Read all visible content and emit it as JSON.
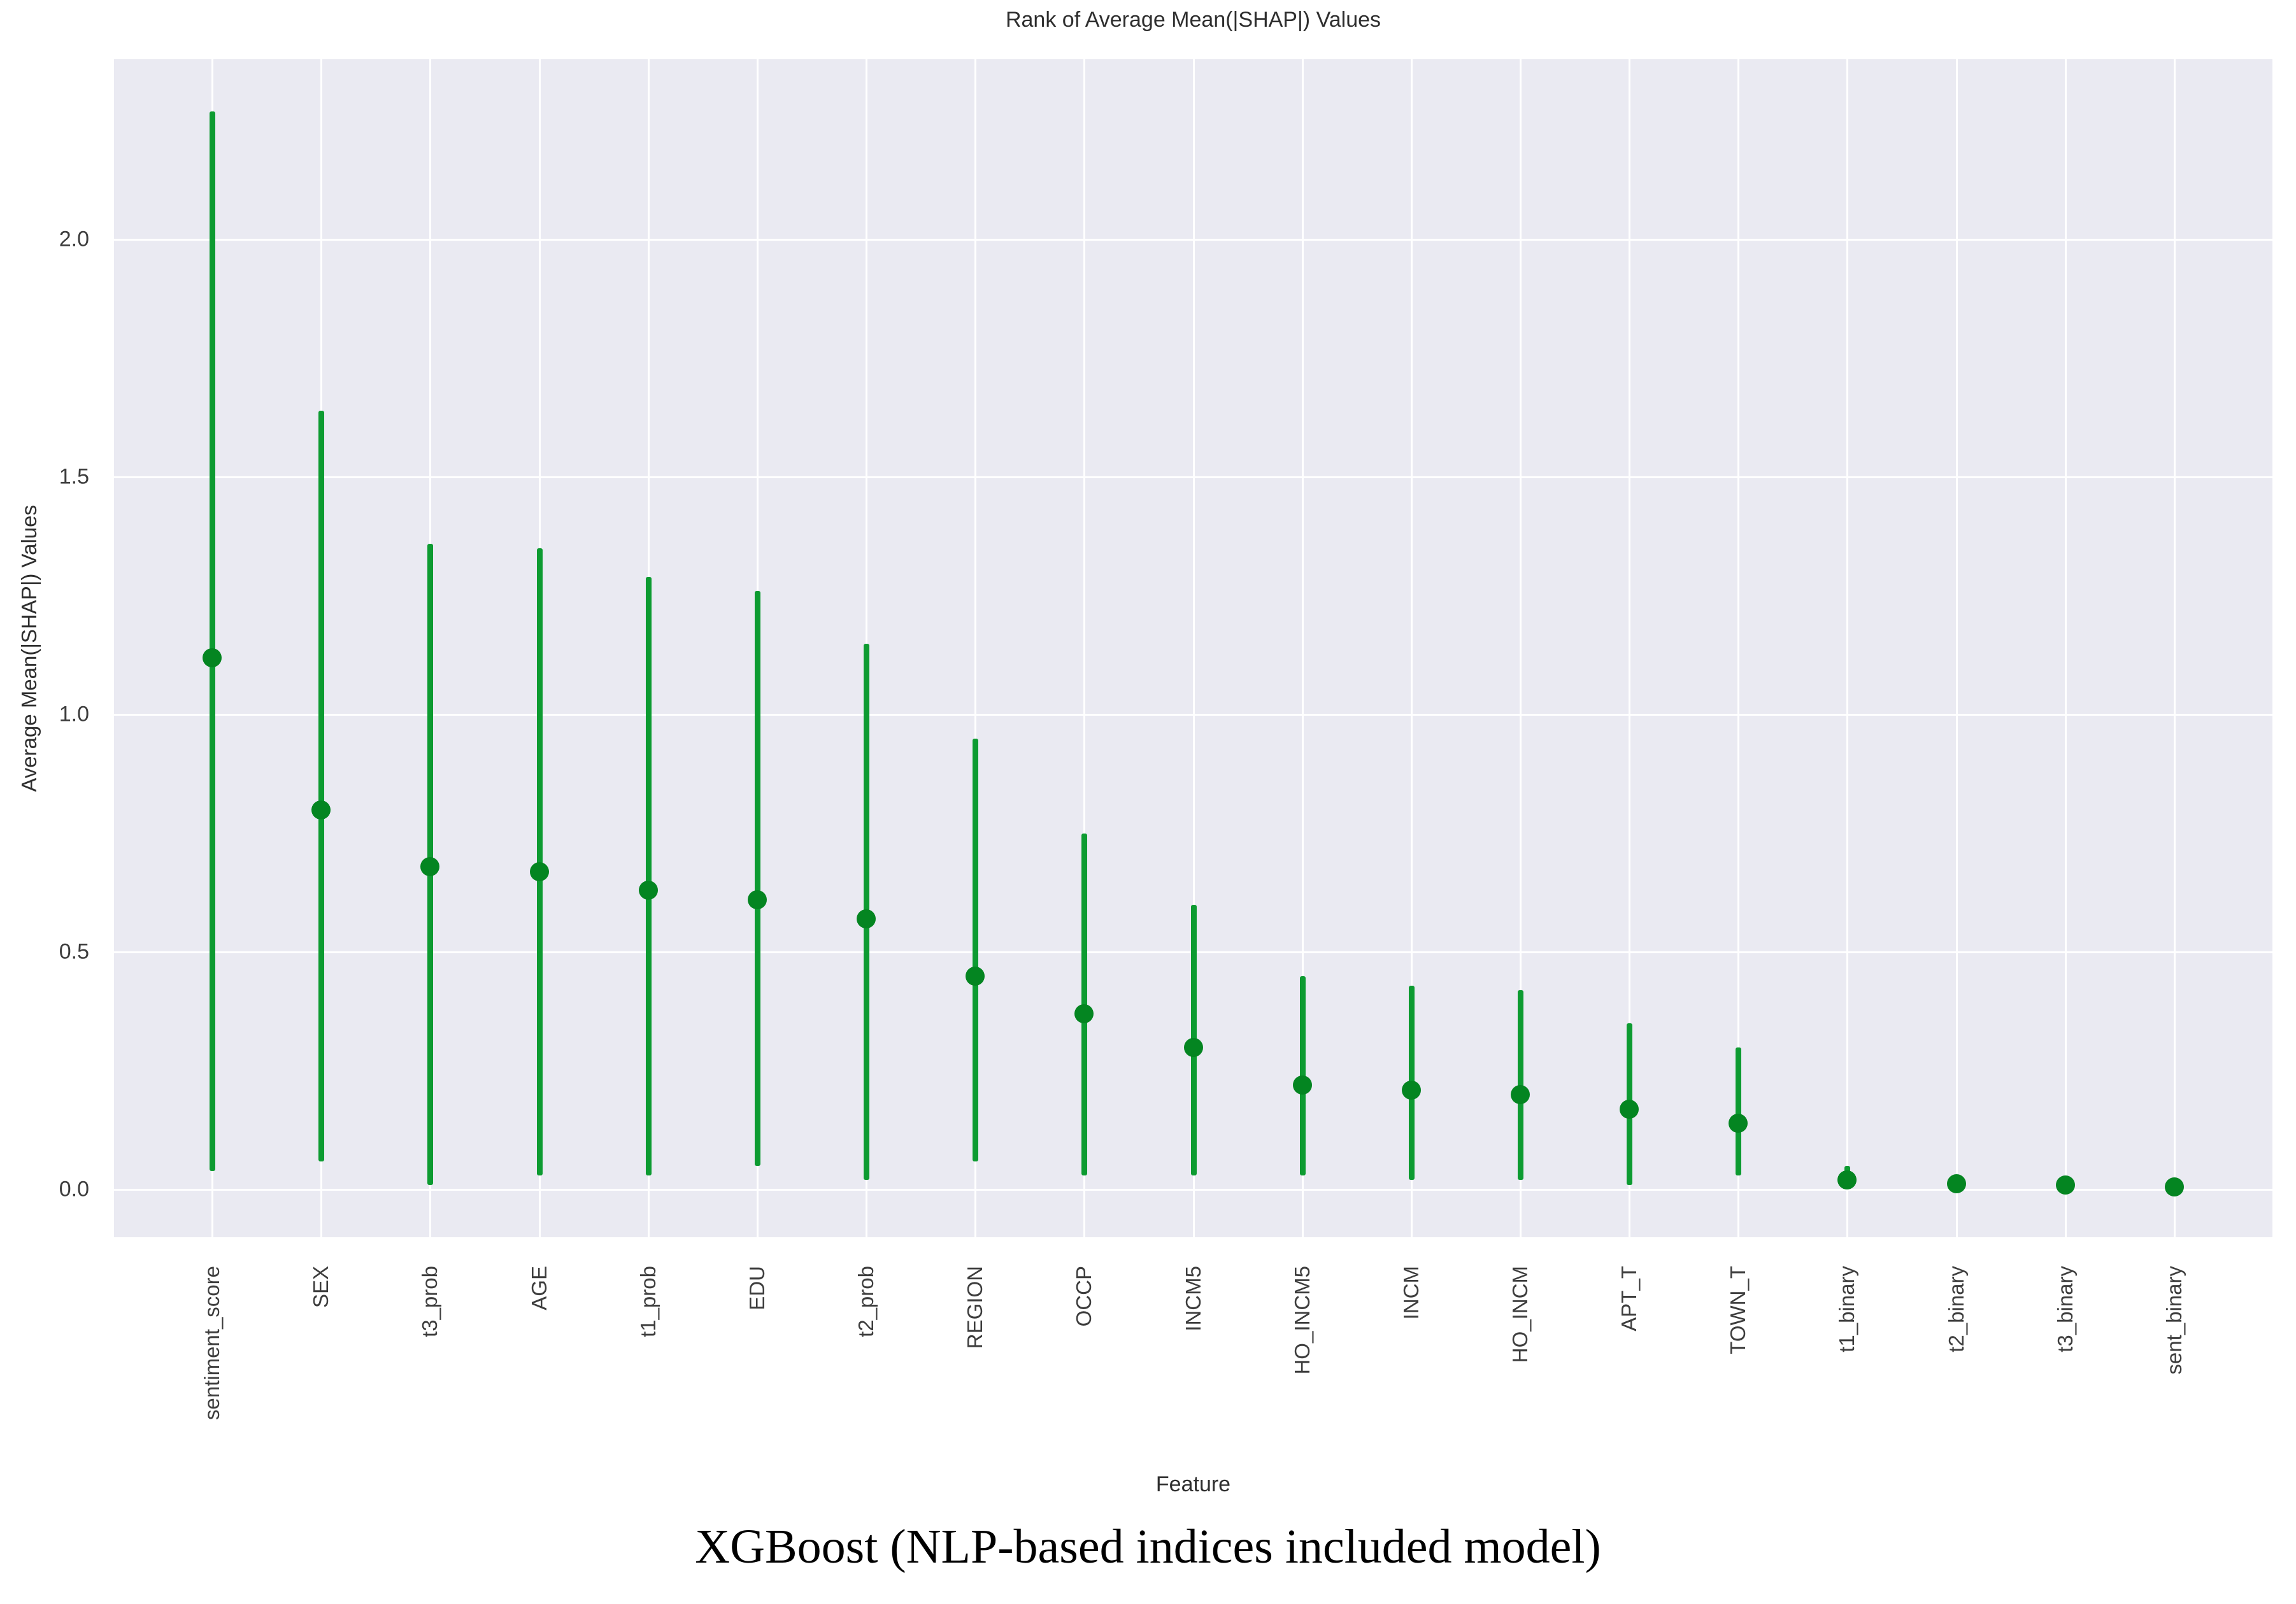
{
  "figure": {
    "title": "Rank of Average Mean(|SHAP|) Values",
    "x_axis_label": "Feature",
    "y_axis_label": "Average Mean(|SHAP|) Values",
    "caption": "XGBoost (NLP-based indices included model)"
  },
  "colors": {
    "figure_background": "#ffffff",
    "plot_background": "#eaeaf2",
    "gridline": "#ffffff",
    "error_bar": "#0d9b31",
    "marker": "#048521",
    "text": "#2e2e2e",
    "tick_text": "#3d3d3d"
  },
  "chart_data": {
    "type": "scatter",
    "subtype": "point-plot-with-error-bars",
    "title": "Rank of Average Mean(|SHAP|) Values",
    "xlabel": "Feature",
    "ylabel": "Average Mean(|SHAP|) Values",
    "caption": "XGBoost (NLP-based indices included model)",
    "grid": true,
    "legend": false,
    "categories": [
      "sentiment_score",
      "SEX",
      "t3_prob",
      "AGE",
      "t1_prob",
      "EDU",
      "t2_prob",
      "REGION",
      "OCCP",
      "INCM5",
      "HO_INCM5",
      "INCM",
      "HO_INCM",
      "APT_T",
      "TOWN_T",
      "t1_binary",
      "t2_binary",
      "t3_binary",
      "sent_binary"
    ],
    "series": [
      {
        "name": "mean",
        "values": [
          1.12,
          0.8,
          0.68,
          0.67,
          0.63,
          0.61,
          0.57,
          0.45,
          0.37,
          0.3,
          0.22,
          0.21,
          0.2,
          0.17,
          0.14,
          0.02,
          0.013,
          0.01,
          0.006
        ]
      },
      {
        "name": "error_low",
        "values": [
          0.04,
          0.06,
          0.01,
          0.03,
          0.03,
          0.05,
          0.02,
          0.06,
          0.03,
          0.03,
          0.03,
          0.02,
          0.02,
          0.01,
          0.03,
          0.01,
          0.013,
          0.01,
          0.006
        ]
      },
      {
        "name": "error_high",
        "values": [
          2.27,
          1.64,
          1.36,
          1.35,
          1.29,
          1.26,
          1.15,
          0.95,
          0.75,
          0.6,
          0.45,
          0.43,
          0.42,
          0.35,
          0.3,
          0.05,
          0.013,
          0.01,
          0.006
        ]
      }
    ],
    "ylim": [
      -0.1,
      2.38
    ],
    "yticks": [
      0.0,
      0.5,
      1.0,
      1.5,
      2.0
    ],
    "ytick_labels": [
      "0.0",
      "0.5",
      "1.0",
      "1.5",
      "2.0"
    ]
  }
}
